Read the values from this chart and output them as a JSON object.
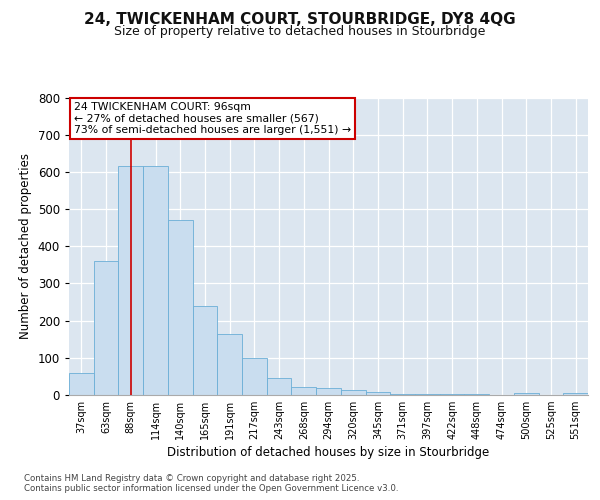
{
  "title_line1": "24, TWICKENHAM COURT, STOURBRIDGE, DY8 4QG",
  "title_line2": "Size of property relative to detached houses in Stourbridge",
  "xlabel": "Distribution of detached houses by size in Stourbridge",
  "ylabel": "Number of detached properties",
  "categories": [
    "37sqm",
    "63sqm",
    "88sqm",
    "114sqm",
    "140sqm",
    "165sqm",
    "191sqm",
    "217sqm",
    "243sqm",
    "268sqm",
    "294sqm",
    "320sqm",
    "345sqm",
    "371sqm",
    "397sqm",
    "422sqm",
    "448sqm",
    "474sqm",
    "500sqm",
    "525sqm",
    "551sqm"
  ],
  "values": [
    60,
    360,
    615,
    615,
    470,
    240,
    163,
    100,
    47,
    22,
    18,
    14,
    8,
    2,
    2,
    2,
    2,
    1,
    5,
    1,
    5
  ],
  "bar_color": "#c9ddef",
  "bar_edge_color": "#6baed6",
  "vline_x_index": 2.0,
  "annotation_text": "24 TWICKENHAM COURT: 96sqm\n← 27% of detached houses are smaller (567)\n73% of semi-detached houses are larger (1,551) →",
  "annotation_box_color": "#ffffff",
  "annotation_box_edge": "#cc0000",
  "vline_color": "#cc0000",
  "ylim": [
    0,
    800
  ],
  "yticks": [
    0,
    100,
    200,
    300,
    400,
    500,
    600,
    700,
    800
  ],
  "bg_color": "#dce6f0",
  "plot_bg_color": "#dce6f0",
  "footer_line1": "Contains HM Land Registry data © Crown copyright and database right 2025.",
  "footer_line2": "Contains public sector information licensed under the Open Government Licence v3.0."
}
